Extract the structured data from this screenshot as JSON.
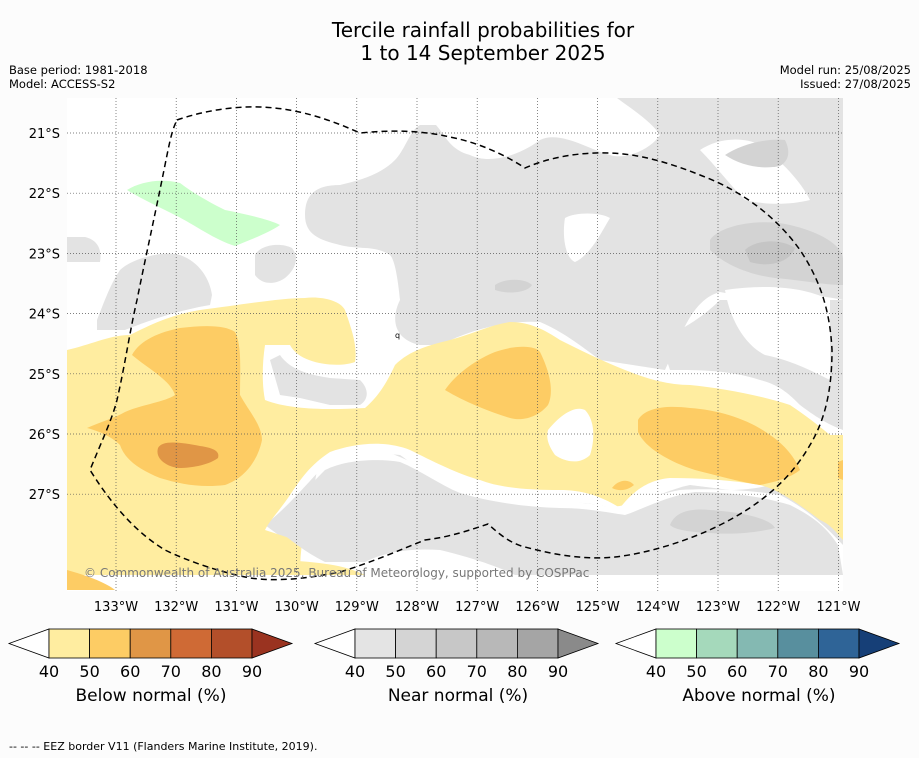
{
  "title": {
    "line1": "Tercile rainfall probabilities for",
    "line2": "1 to 14 September 2025"
  },
  "meta": {
    "base_period": "Base period: 1981-2018",
    "model": "Model: ACCESS-S2",
    "model_run": "Model run: 25/08/2025",
    "issued": "Issued: 27/08/2025"
  },
  "map": {
    "lat_labels": [
      "21°S",
      "22°S",
      "23°S",
      "24°S",
      "25°S",
      "26°S",
      "27°S"
    ],
    "lon_labels": [
      "133°W",
      "132°W",
      "131°W",
      "130°W",
      "129°W",
      "128°W",
      "127°W",
      "126°W",
      "125°W",
      "124°W",
      "123°W",
      "122°W",
      "121°W"
    ],
    "copyright": "© Commonwealth of Australia 2025, Bureau of Meteorology, supported by COSPPac",
    "colors": {
      "below_40": "#ffeda0",
      "below_50": "#fdcc64",
      "below_60": "#e09646",
      "near_40": "#e3e3e3",
      "near_50": "#d3d3d3",
      "near_60": "#c5c5c5",
      "above_40": "#ccffcc"
    }
  },
  "colorbars": [
    {
      "label": "Below normal (%)",
      "ticks": [
        "40",
        "50",
        "60",
        "70",
        "80",
        "90"
      ],
      "colors": [
        "#ffeda0",
        "#fdcc64",
        "#e09646",
        "#cf6a35",
        "#b34f2a",
        "#9a3320"
      ]
    },
    {
      "label": "Near normal (%)",
      "ticks": [
        "40",
        "50",
        "60",
        "70",
        "80",
        "90"
      ],
      "colors": [
        "#e4e4e4",
        "#d4d4d4",
        "#c7c7c7",
        "#b8b8b8",
        "#a5a5a5",
        "#8a8a8a"
      ]
    },
    {
      "label": "Above normal (%)",
      "ticks": [
        "40",
        "50",
        "60",
        "70",
        "80",
        "90"
      ],
      "colors": [
        "#ccffcc",
        "#a5d9bb",
        "#84b9b2",
        "#588f9e",
        "#2f6497",
        "#163f77"
      ]
    }
  ],
  "footer": "--  --  -- EEZ border V11 (Flanders Marine Institute, 2019)."
}
